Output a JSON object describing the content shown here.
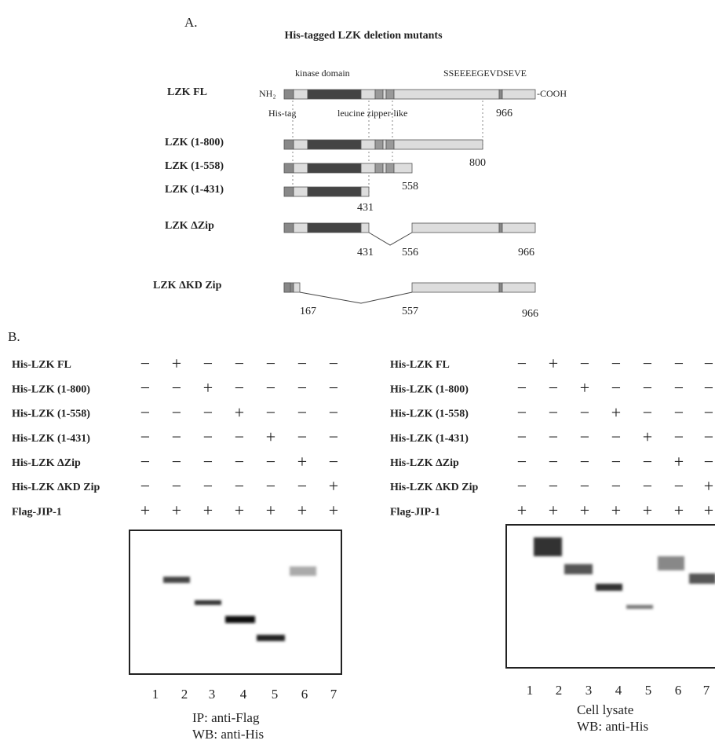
{
  "panel_a": {
    "label": "A.",
    "title": "His-tagged LZK deletion mutants",
    "annotations": {
      "kinase_domain": "kinase domain",
      "motif": "SSEEEEGEVDSEVE",
      "nh2": "NH₂",
      "cooh": "-COOH",
      "his_tag": "His-tag",
      "leucine_zipper": "leucine zipper-like"
    },
    "constructs": [
      {
        "name": "LZK FL",
        "positions": [
          966
        ]
      },
      {
        "name": "LZK (1-800)",
        "positions": [
          800
        ]
      },
      {
        "name": "LZK (1-558)",
        "positions": [
          558
        ]
      },
      {
        "name": "LZK (1-431)",
        "positions": [
          431
        ]
      },
      {
        "name": "LZK ΔZip",
        "positions": [
          431,
          556,
          966
        ]
      },
      {
        "name": "LZK ΔKD Zip",
        "positions": [
          167,
          557,
          966
        ]
      }
    ]
  },
  "panel_b": {
    "label": "B.",
    "blots": [
      {
        "rows": [
          {
            "name": "His-LZK FL",
            "signs": [
              "−",
              "+",
              "−",
              "−",
              "−",
              "−",
              "−"
            ]
          },
          {
            "name": "His-LZK (1-800)",
            "signs": [
              "−",
              "−",
              "+",
              "−",
              "−",
              "−",
              "−"
            ]
          },
          {
            "name": "His-LZK (1-558)",
            "signs": [
              "−",
              "−",
              "−",
              "+",
              "−",
              "−",
              "−"
            ]
          },
          {
            "name": "His-LZK (1-431)",
            "signs": [
              "−",
              "−",
              "−",
              "−",
              "+",
              "−",
              "−"
            ]
          },
          {
            "name": "His-LZK ΔZip",
            "signs": [
              "−",
              "−",
              "−",
              "−",
              "−",
              "+",
              "−"
            ]
          },
          {
            "name": "His-LZK ΔKD Zip",
            "signs": [
              "−",
              "−",
              "−",
              "−",
              "−",
              "−",
              "+"
            ]
          },
          {
            "name": "Flag-JIP-1",
            "signs": [
              "+",
              "+",
              "+",
              "+",
              "+",
              "+",
              "+"
            ]
          }
        ],
        "lanes": [
          "1",
          "2",
          "3",
          "4",
          "5",
          "6",
          "7"
        ],
        "caption": [
          "IP: anti-Flag",
          "WB: anti-His"
        ]
      },
      {
        "rows": [
          {
            "name": "His-LZK FL",
            "signs": [
              "−",
              "+",
              "−",
              "−",
              "−",
              "−",
              "−"
            ]
          },
          {
            "name": "His-LZK (1-800)",
            "signs": [
              "−",
              "−",
              "+",
              "−",
              "−",
              "−",
              "−"
            ]
          },
          {
            "name": "His-LZK (1-558)",
            "signs": [
              "−",
              "−",
              "−",
              "+",
              "−",
              "−",
              "−"
            ]
          },
          {
            "name": "His-LZK (1-431)",
            "signs": [
              "−",
              "−",
              "−",
              "−",
              "+",
              "−",
              "−"
            ]
          },
          {
            "name": "His-LZK ΔZip",
            "signs": [
              "−",
              "−",
              "−",
              "−",
              "−",
              "+",
              "−"
            ]
          },
          {
            "name": "His-LZK ΔKD Zip",
            "signs": [
              "−",
              "−",
              "−",
              "−",
              "−",
              "−",
              "+"
            ]
          },
          {
            "name": "Flag-JIP-1",
            "signs": [
              "+",
              "+",
              "+",
              "+",
              "+",
              "+",
              "+"
            ]
          }
        ],
        "lanes": [
          "1",
          "2",
          "3",
          "4",
          "5",
          "6",
          "7"
        ],
        "caption": [
          "Cell lysate",
          "WB: anti-His"
        ]
      }
    ]
  }
}
